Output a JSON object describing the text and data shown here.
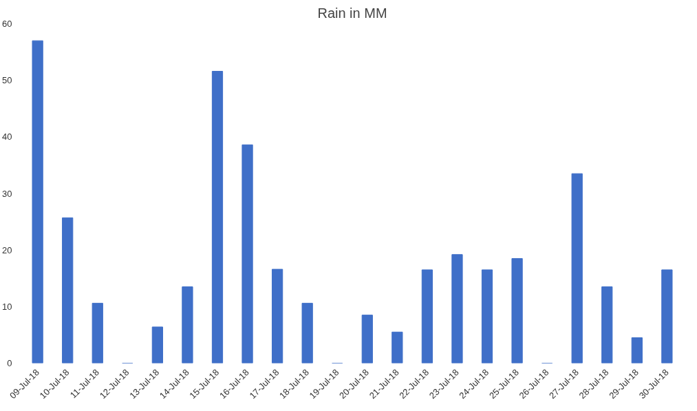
{
  "chart_data": {
    "type": "bar",
    "title": "Rain in MM",
    "categories": [
      "09-Jul-18",
      "10-Jul-18",
      "11-Jul-18",
      "12-Jul-18",
      "13-Jul-18",
      "14-Jul-18",
      "15-Jul-18",
      "16-Jul-18",
      "17-Jul-18",
      "18-Jul-18",
      "19-Jul-18",
      "20-Jul-18",
      "21-Jul-18",
      "22-Jul-18",
      "23-Jul-18",
      "24-Jul-18",
      "25-Jul-18",
      "26-Jul-18",
      "27-Jul-18",
      "28-Jul-18",
      "29-Jul-18",
      "30-Jul-18"
    ],
    "values": [
      57,
      25.7,
      10.6,
      0,
      6.4,
      13.5,
      51.6,
      38.6,
      16.6,
      10.6,
      0,
      8.5,
      5.5,
      16.5,
      19.2,
      16.5,
      18.5,
      0,
      33.5,
      13.5,
      4.5,
      16.5
    ],
    "color": "#3f6fc8",
    "ylim": [
      0,
      60
    ],
    "yticks": [
      0,
      10,
      20,
      30,
      40,
      50,
      60
    ],
    "grid": false
  }
}
